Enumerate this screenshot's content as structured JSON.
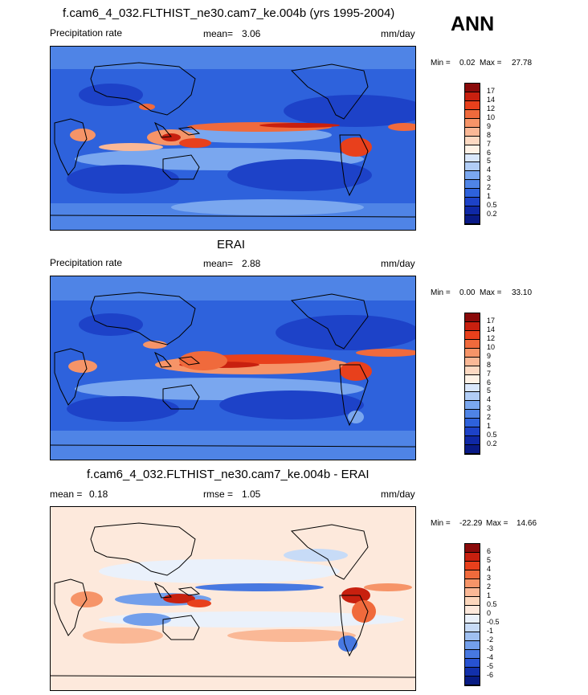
{
  "season": "ANN",
  "units": "mm/day",
  "panels": [
    {
      "id": "model",
      "title": "f.cam6_4_032.FLTHIST_ne30.cam7_ke.004b (yrs 1995-2004)",
      "left_label": "Precipitation rate",
      "stat_label": "mean=",
      "stat_value": "3.06",
      "units": "mm/day",
      "min_label": "Min =",
      "min_value": "0.02",
      "max_label": "Max =",
      "max_value": "27.78",
      "levels": [
        "17",
        "14",
        "12",
        "10",
        "9",
        "8",
        "7",
        "6",
        "5",
        "4",
        "3",
        "2",
        "1",
        "0.5",
        "0.2"
      ],
      "colors": [
        "#8a0a0a",
        "#c8200f",
        "#e8401c",
        "#f06a3c",
        "#f69468",
        "#fab896",
        "#fdd9c2",
        "#fff2e6",
        "#d9e7fb",
        "#b1cdf6",
        "#7aa7ef",
        "#4f84e6",
        "#2e62dc",
        "#1d42c8",
        "#0f28a6",
        "#091a86"
      ]
    },
    {
      "id": "obs",
      "title": "ERAI",
      "left_label": "Precipitation rate",
      "stat_label": "mean=",
      "stat_value": "2.88",
      "units": "mm/day",
      "min_label": "Min =",
      "min_value": "0.00",
      "max_label": "Max =",
      "max_value": "33.10",
      "levels": [
        "17",
        "14",
        "12",
        "10",
        "9",
        "8",
        "7",
        "6",
        "5",
        "4",
        "3",
        "2",
        "1",
        "0.5",
        "0.2"
      ],
      "colors": [
        "#8a0a0a",
        "#c8200f",
        "#e8401c",
        "#f06a3c",
        "#f69468",
        "#fab896",
        "#fdd9c2",
        "#fff2e6",
        "#d9e7fb",
        "#b1cdf6",
        "#7aa7ef",
        "#4f84e6",
        "#2e62dc",
        "#1d42c8",
        "#0f28a6",
        "#091a86"
      ]
    },
    {
      "id": "diff",
      "title": "f.cam6_4_032.FLTHIST_ne30.cam7_ke.004b - ERAI",
      "left_label": "mean =",
      "left_value": "0.18",
      "stat_label": "rmse =",
      "stat_value": "1.05",
      "units": "mm/day",
      "min_label": "Min =",
      "min_value": "-22.29",
      "max_label": "Max =",
      "max_value": "14.66",
      "levels": [
        "6",
        "5",
        "4",
        "3",
        "2",
        "1",
        "0.5",
        "0",
        "-0.5",
        "-1",
        "-2",
        "-3",
        "-4",
        "-5",
        "-6"
      ],
      "colors": [
        "#8a0a0a",
        "#c8200f",
        "#e8401c",
        "#f06a3c",
        "#f69468",
        "#fab896",
        "#fcd7bd",
        "#fde9dc",
        "#eaf1fb",
        "#c7dbf7",
        "#9fc0f1",
        "#739feb",
        "#4778e1",
        "#2752d2",
        "#1230ab",
        "#081c84"
      ]
    }
  ]
}
